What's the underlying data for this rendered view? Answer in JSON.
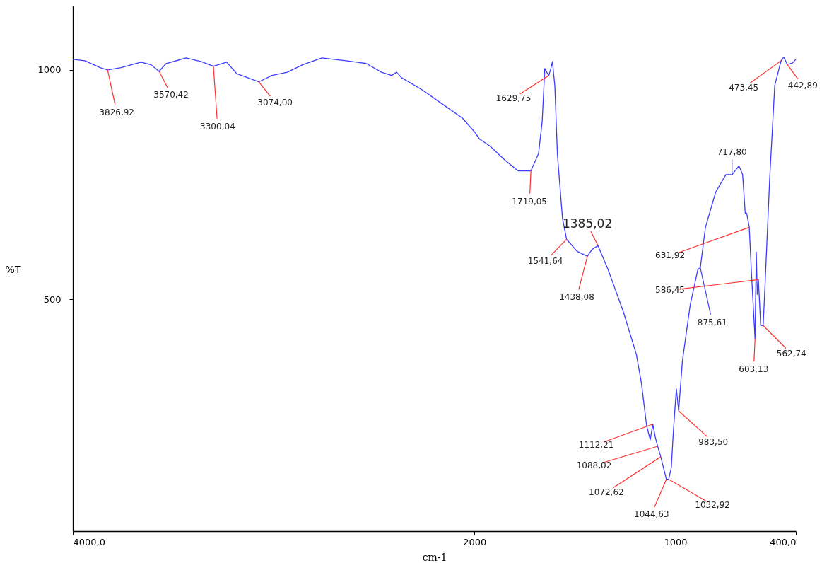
{
  "chart_data": {
    "type": "line",
    "xlabel": "cm-1",
    "ylabel": "%T",
    "xlim": [
      4000,
      400
    ],
    "ylim": [
      -5,
      1140
    ],
    "xticks": [
      {
        "value": 4000,
        "label": "4000,0"
      },
      2000,
      1000,
      {
        "value": 400,
        "label": "400,0"
      }
    ],
    "yticks": [
      500,
      1000
    ],
    "grid": false,
    "marker": "none",
    "line_style": "solid",
    "series": [
      {
        "color": "#3c3cff",
        "x": [
          4000,
          3940,
          3864,
          3826.92,
          3760,
          3660,
          3610,
          3570.42,
          3535,
          3436,
          3360,
          3300.04,
          3234,
          3184,
          3074,
          3008,
          2932,
          2856,
          2760,
          2640,
          2539,
          2463,
          2413,
          2388,
          2363,
          2262,
          2161,
          2060,
          2000,
          1974,
          1923,
          1847,
          1783,
          1719.05,
          1681,
          1663,
          1650,
          1640,
          1629.75,
          1620,
          1612,
          1600,
          1587,
          1562,
          1541.64,
          1490,
          1438.08,
          1415,
          1385.02,
          1335,
          1258,
          1194,
          1169,
          1143,
          1125,
          1112.21,
          1100,
          1088.02,
          1072.62,
          1044.63,
          1032.92,
          1020,
          1010,
          995,
          983.5,
          965,
          926,
          888,
          875.61,
          850,
          799,
          748,
          717.8,
          683,
          665,
          652,
          645,
          638,
          631.92,
          620,
          603.13,
          597,
          592,
          586.45,
          575,
          562.74,
          556,
          530,
          505,
          473.45,
          460,
          442.89,
          417,
          400
        ],
        "values": [
          1023,
          1020,
          1005,
          1000,
          1005,
          1017,
          1011,
          997,
          1014,
          1026,
          1018,
          1008,
          1017,
          992,
          974,
          988,
          995,
          1011,
          1026,
          1020,
          1014,
          995,
          988,
          995,
          983,
          957,
          926,
          895,
          865,
          849,
          834,
          803,
          780,
          780,
          818,
          887,
          1003,
          995,
          988,
          1003,
          1018,
          965,
          815,
          677,
          631,
          605,
          594,
          609,
          617,
          565,
          472,
          380,
          318,
          225,
          194,
          228,
          200,
          180,
          157,
          108,
          108,
          134,
          211,
          305,
          257,
          365,
          488,
          565,
          569,
          657,
          734,
          772,
          772,
          791,
          772,
          688,
          688,
          672,
          657,
          549,
          414,
          603,
          511,
          543,
          443,
          443,
          505,
          765,
          966,
          1020,
          1028,
          1012,
          1015,
          1023
        ]
      }
    ],
    "annotations": [
      {
        "text": "3826,92",
        "x": 3826.92,
        "y": 1000
      },
      {
        "text": "3570,42",
        "x": 3570.42,
        "y": 997
      },
      {
        "text": "3300,04",
        "x": 3300.04,
        "y": 1008
      },
      {
        "text": "3074,00",
        "x": 3074,
        "y": 974
      },
      {
        "text": "1629,75",
        "x": 1629.75,
        "y": 988
      },
      {
        "text": "1719,05",
        "x": 1719.05,
        "y": 780
      },
      {
        "text": "1541,64",
        "x": 1541.64,
        "y": 631
      },
      {
        "text": "1438,08",
        "x": 1438.08,
        "y": 594
      },
      {
        "text": "1385,02",
        "x": 1385.02,
        "y": 617
      },
      {
        "text": "1112,21",
        "x": 1112.21,
        "y": 228
      },
      {
        "text": "1088,02",
        "x": 1088.02,
        "y": 180
      },
      {
        "text": "1072,62",
        "x": 1072.62,
        "y": 157
      },
      {
        "text": "1044,63",
        "x": 1044.63,
        "y": 108
      },
      {
        "text": "1032,92",
        "x": 1032.92,
        "y": 108
      },
      {
        "text": "983,50",
        "x": 983.5,
        "y": 257
      },
      {
        "text": "875,61",
        "x": 875.61,
        "y": 569
      },
      {
        "text": "717,80",
        "x": 717.8,
        "y": 772
      },
      {
        "text": "631,92",
        "x": 631.92,
        "y": 657
      },
      {
        "text": "586,45",
        "x": 586.45,
        "y": 543
      },
      {
        "text": "603,13",
        "x": 603.13,
        "y": 414
      },
      {
        "text": "562,74",
        "x": 562.74,
        "y": 443
      },
      {
        "text": "473,45",
        "x": 473.45,
        "y": 1020
      },
      {
        "text": "442,89",
        "x": 442.89,
        "y": 1012
      }
    ]
  }
}
